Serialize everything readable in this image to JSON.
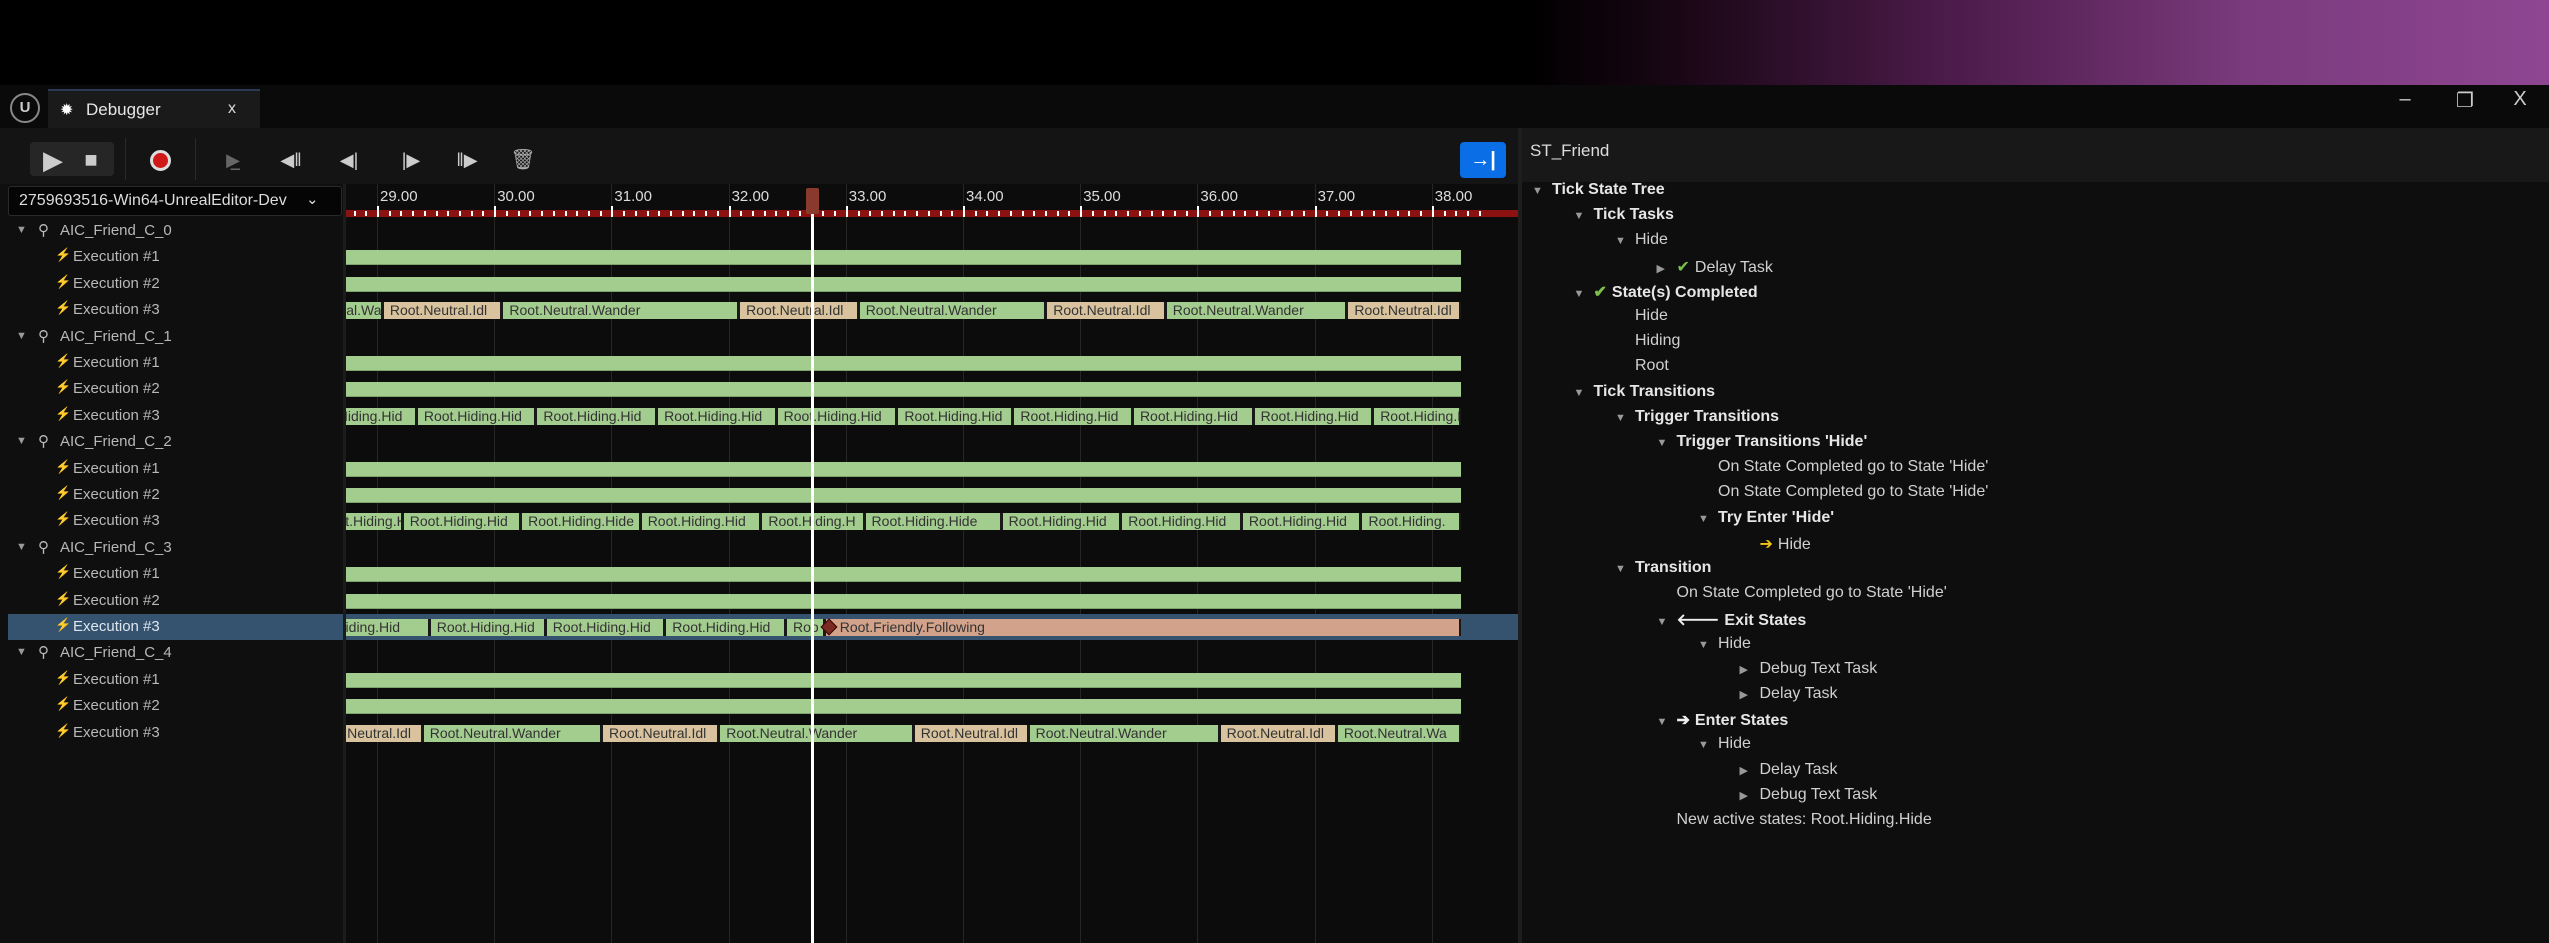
{
  "window": {
    "tab_title": "Debugger",
    "tab_close": "x",
    "logo": "U",
    "controls": {
      "minimize": "–",
      "restore": "❐",
      "close": "X"
    }
  },
  "toolbar": {
    "session": "2759693516-Win64-UnrealEditor-Dev",
    "icons": [
      "play-icon",
      "stop-icon",
      "record-icon",
      "step-into-icon",
      "back-frame-icon",
      "step-back-icon",
      "step-forward-icon",
      "forward-frame-icon",
      "trash-icon",
      "dock-right-icon"
    ]
  },
  "colors": {
    "active": "#a3cc8f",
    "idle": "#d8c39e",
    "friendly": "#d2a28a",
    "selected": "#35536f",
    "scrubber": "#ffffff",
    "ruler": "#8c1212",
    "accent": "#0a6ee6"
  },
  "timeline": {
    "ticks": [
      "29.00",
      "30.00",
      "31.00",
      "32.00",
      "33.00",
      "34.00",
      "35.00",
      "36.00",
      "37.00",
      "38.00"
    ],
    "tick_values": [
      29,
      30,
      31,
      32,
      33,
      34,
      35,
      36,
      37,
      38
    ],
    "scrubber_time": 32.71,
    "end_time": 38.25
  },
  "tracks": [
    {
      "name": "AIC_Friend_C_0",
      "executions": [
        {
          "label": "Execution #1",
          "segments": [
            {
              "start": 28.7,
              "end": 38.25,
              "label": "",
              "state": "active"
            }
          ]
        },
        {
          "label": "Execution #2",
          "segments": [
            {
              "start": 28.7,
              "end": 38.25,
              "label": "",
              "state": "active"
            }
          ]
        },
        {
          "label": "Execution #3",
          "segments": [
            {
              "start": 28.1,
              "end": 29.05,
              "label": "Root.Neutral.Wander",
              "state": "active"
            },
            {
              "start": 29.05,
              "end": 30.07,
              "label": "Root.Neutral.Idl",
              "state": "idle"
            },
            {
              "start": 30.07,
              "end": 32.09,
              "label": "Root.Neutral.Wander",
              "state": "active"
            },
            {
              "start": 32.09,
              "end": 33.11,
              "label": "Root.Neutral.Idl",
              "state": "idle"
            },
            {
              "start": 33.11,
              "end": 34.71,
              "label": "Root.Neutral.Wander",
              "state": "active"
            },
            {
              "start": 34.71,
              "end": 35.73,
              "label": "Root.Neutral.Idl",
              "state": "idle"
            },
            {
              "start": 35.73,
              "end": 37.28,
              "label": "Root.Neutral.Wander",
              "state": "active"
            },
            {
              "start": 37.28,
              "end": 38.25,
              "label": "Root.Neutral.Idl",
              "state": "idle"
            }
          ]
        }
      ]
    },
    {
      "name": "AIC_Friend_C_1",
      "executions": [
        {
          "label": "Execution #1",
          "segments": [
            {
              "start": 28.7,
              "end": 38.25,
              "label": "",
              "state": "active"
            }
          ]
        },
        {
          "label": "Execution #2",
          "segments": [
            {
              "start": 28.7,
              "end": 38.25,
              "label": "",
              "state": "active"
            }
          ]
        },
        {
          "label": "Execution #3",
          "segments": [
            {
              "start": 28.32,
              "end": 29.34,
              "label": "Root.Hiding.Hid",
              "state": "active"
            },
            {
              "start": 29.34,
              "end": 30.36,
              "label": "Root.Hiding.Hid",
              "state": "active"
            },
            {
              "start": 30.36,
              "end": 31.39,
              "label": "Root.Hiding.Hid",
              "state": "active"
            },
            {
              "start": 31.39,
              "end": 32.41,
              "label": "Root.Hiding.Hid",
              "state": "active"
            },
            {
              "start": 32.41,
              "end": 33.44,
              "label": "Root.Hiding.Hid",
              "state": "active"
            },
            {
              "start": 33.44,
              "end": 34.43,
              "label": "Root.Hiding.Hid",
              "state": "active"
            },
            {
              "start": 34.43,
              "end": 35.45,
              "label": "Root.Hiding.Hid",
              "state": "active"
            },
            {
              "start": 35.45,
              "end": 36.48,
              "label": "Root.Hiding.Hid",
              "state": "active"
            },
            {
              "start": 36.48,
              "end": 37.5,
              "label": "Root.Hiding.Hid",
              "state": "active"
            },
            {
              "start": 37.5,
              "end": 38.25,
              "label": "Root.Hiding.Hid",
              "state": "active"
            }
          ]
        }
      ]
    },
    {
      "name": "AIC_Friend_C_2",
      "executions": [
        {
          "label": "Execution #1",
          "segments": [
            {
              "start": 28.7,
              "end": 38.25,
              "label": "",
              "state": "active"
            }
          ]
        },
        {
          "label": "Execution #2",
          "segments": [
            {
              "start": 28.7,
              "end": 38.25,
              "label": "",
              "state": "active"
            }
          ]
        },
        {
          "label": "Execution #3",
          "segments": [
            {
              "start": 28.45,
              "end": 29.22,
              "label": "Root.Hiding.Hid",
              "state": "active"
            },
            {
              "start": 29.22,
              "end": 30.23,
              "label": "Root.Hiding.Hid",
              "state": "active"
            },
            {
              "start": 30.23,
              "end": 31.25,
              "label": "Root.Hiding.Hide",
              "state": "active"
            },
            {
              "start": 31.25,
              "end": 32.28,
              "label": "Root.Hiding.Hid",
              "state": "active"
            },
            {
              "start": 32.28,
              "end": 33.16,
              "label": "Root.Hiding.H",
              "state": "active"
            },
            {
              "start": 33.16,
              "end": 34.33,
              "label": "Root.Hiding.Hide",
              "state": "active"
            },
            {
              "start": 34.33,
              "end": 35.35,
              "label": "Root.Hiding.Hid",
              "state": "active"
            },
            {
              "start": 35.35,
              "end": 36.38,
              "label": "Root.Hiding.Hid",
              "state": "active"
            },
            {
              "start": 36.38,
              "end": 37.4,
              "label": "Root.Hiding.Hid",
              "state": "active"
            },
            {
              "start": 37.4,
              "end": 38.25,
              "label": "Root.Hiding.",
              "state": "active"
            }
          ]
        }
      ]
    },
    {
      "name": "AIC_Friend_C_3",
      "executions": [
        {
          "label": "Execution #1",
          "segments": [
            {
              "start": 28.7,
              "end": 38.25,
              "label": "",
              "state": "active"
            }
          ]
        },
        {
          "label": "Execution #2",
          "segments": [
            {
              "start": 28.7,
              "end": 38.25,
              "label": "",
              "state": "active"
            }
          ]
        },
        {
          "label": "Execution #3",
          "selected": true,
          "marker_time": 32.86,
          "segments": [
            {
              "start": 28.3,
              "end": 29.45,
              "label": "Root.Hiding.Hid",
              "state": "active"
            },
            {
              "start": 29.45,
              "end": 30.44,
              "label": "Root.Hiding.Hid",
              "state": "active"
            },
            {
              "start": 30.44,
              "end": 31.46,
              "label": "Root.Hiding.Hid",
              "state": "active"
            },
            {
              "start": 31.46,
              "end": 32.49,
              "label": "Root.Hiding.Hid",
              "state": "active"
            },
            {
              "start": 32.49,
              "end": 32.82,
              "label": "Roo",
              "state": "active"
            },
            {
              "start": 32.82,
              "end": 38.25,
              "label": "Root.Friendly.Following",
              "state": "friendly"
            }
          ]
        }
      ]
    },
    {
      "name": "AIC_Friend_C_4",
      "executions": [
        {
          "label": "Execution #1",
          "segments": [
            {
              "start": 28.7,
              "end": 38.25,
              "label": "",
              "state": "active"
            }
          ]
        },
        {
          "label": "Execution #2",
          "segments": [
            {
              "start": 28.7,
              "end": 38.25,
              "label": "",
              "state": "active"
            }
          ]
        },
        {
          "label": "Execution #3",
          "segments": [
            {
              "start": 28.4,
              "end": 29.39,
              "label": "Root.Neutral.Idl",
              "state": "idle"
            },
            {
              "start": 29.39,
              "end": 30.92,
              "label": "Root.Neutral.Wander",
              "state": "active"
            },
            {
              "start": 30.92,
              "end": 31.92,
              "label": "Root.Neutral.Idl",
              "state": "idle"
            },
            {
              "start": 31.92,
              "end": 33.58,
              "label": "Root.Neutral.Wander",
              "state": "active"
            },
            {
              "start": 33.58,
              "end": 34.56,
              "label": "Root.Neutral.Idl",
              "state": "idle"
            },
            {
              "start": 34.56,
              "end": 36.19,
              "label": "Root.Neutral.Wander",
              "state": "active"
            },
            {
              "start": 36.19,
              "end": 37.19,
              "label": "Root.Neutral.Idl",
              "state": "idle"
            },
            {
              "start": 37.19,
              "end": 38.25,
              "label": "Root.Neutral.Wa",
              "state": "active"
            }
          ]
        }
      ]
    }
  ],
  "details": {
    "title": "ST_Friend",
    "rows": [
      {
        "text": "Tick State Tree",
        "level": 0,
        "expand": "open",
        "bold": true
      },
      {
        "text": "Tick Tasks",
        "level": 1,
        "expand": "open",
        "bold": true
      },
      {
        "text": "Hide",
        "level": 2,
        "expand": "open"
      },
      {
        "text": "Delay Task",
        "level": 3,
        "expand": "closed",
        "icon": "check"
      },
      {
        "text": "State(s) Completed",
        "level": 1,
        "expand": "open",
        "bold": true,
        "icon": "check"
      },
      {
        "text": "Hide",
        "level": 2,
        "expand": "none"
      },
      {
        "text": "Hiding",
        "level": 2,
        "expand": "none"
      },
      {
        "text": "Root",
        "level": 2,
        "expand": "none"
      },
      {
        "text": "Tick Transitions",
        "level": 1,
        "expand": "open",
        "bold": true
      },
      {
        "text": "Trigger Transitions",
        "level": 2,
        "expand": "open",
        "bold": true
      },
      {
        "text": "Trigger Transitions 'Hide'",
        "level": 3,
        "expand": "open",
        "bold": true
      },
      {
        "text": "On State Completed go to State 'Hide'",
        "level": 4,
        "expand": "none"
      },
      {
        "text": "On State Completed go to State 'Hide'",
        "level": 4,
        "expand": "none"
      },
      {
        "text": "Try Enter 'Hide'",
        "level": 4,
        "expand": "open",
        "bold": true
      },
      {
        "text": "Hide",
        "level": 5,
        "expand": "none",
        "icon": "arrow-right-yellow"
      },
      {
        "text": "Transition",
        "level": 2,
        "expand": "open",
        "bold": true
      },
      {
        "text": "On State Completed go to State 'Hide'",
        "level": 3,
        "expand": "none"
      },
      {
        "text": "Exit States",
        "level": 3,
        "expand": "open",
        "bold": true,
        "icon": "arrow-left"
      },
      {
        "text": "Hide",
        "level": 4,
        "expand": "open"
      },
      {
        "text": "Debug Text Task",
        "level": 5,
        "expand": "closed"
      },
      {
        "text": "Delay Task",
        "level": 5,
        "expand": "closed"
      },
      {
        "text": "Enter States",
        "level": 3,
        "expand": "open",
        "bold": true,
        "icon": "arrow-right"
      },
      {
        "text": "Hide",
        "level": 4,
        "expand": "open"
      },
      {
        "text": "Delay Task",
        "level": 5,
        "expand": "closed"
      },
      {
        "text": "Debug Text Task",
        "level": 5,
        "expand": "closed"
      },
      {
        "text": "New active states: Root.Hiding.Hide",
        "level": 3,
        "expand": "none"
      }
    ]
  }
}
